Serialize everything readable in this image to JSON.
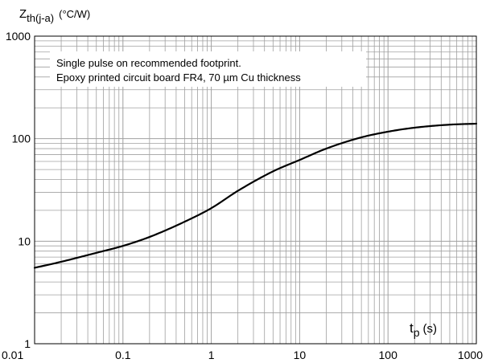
{
  "chart_data": {
    "type": "line",
    "title": "",
    "ylabel": {
      "main": "Z",
      "sub": "th(j-a)",
      "unit": "(°C/W)"
    },
    "xlabel": {
      "main": "t",
      "sub": "p",
      "unit": "(s)"
    },
    "xscale": "log",
    "yscale": "log",
    "xlim": [
      0.01,
      1000
    ],
    "ylim": [
      1,
      1000
    ],
    "grid": true,
    "x_ticks": [
      "0.01",
      "0.1",
      "1",
      "10",
      "100",
      "1000"
    ],
    "y_ticks": [
      "1",
      "10",
      "100",
      "1000"
    ],
    "annotations": [
      "Single pulse on recommended footprint.",
      "Epoxy printed circuit board FR4, 70 µm Cu thickness"
    ],
    "series": [
      {
        "x": [
          0.01,
          0.02,
          0.05,
          0.1,
          0.2,
          0.5,
          1,
          2,
          5,
          10,
          20,
          50,
          100,
          200,
          500,
          1000
        ],
        "y": [
          5.5,
          6.3,
          7.7,
          9.0,
          11.0,
          15.5,
          21,
          31,
          48,
          62,
          80,
          103,
          117,
          128,
          137,
          140
        ]
      }
    ],
    "colors": {
      "line": "#000000",
      "grid": "#a0a0a0",
      "frame": "#000000"
    }
  }
}
